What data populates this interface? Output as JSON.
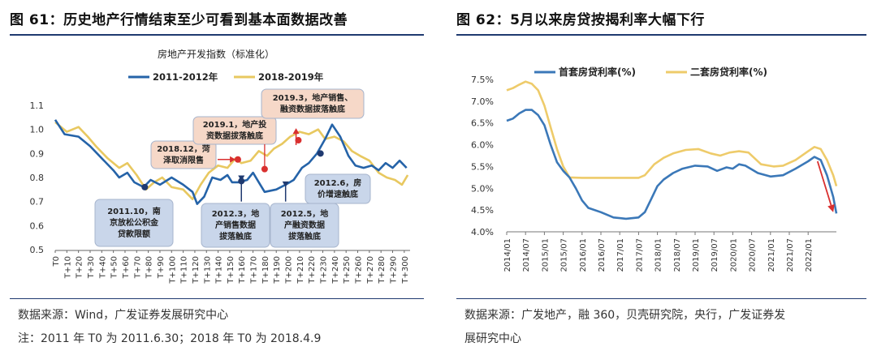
{
  "left_panel": {
    "figure_title": "图 61：历史地产行情结束至少可看到基本面数据改善",
    "source": "数据来源：Wind，广发证券发展研究中心",
    "note": "注：2011 年 T0 为 2011.6.30；2018 年 T0 为 2018.4.9",
    "colors": {
      "s2011": "#2563a8",
      "s2018": "#e8c860",
      "annotation_box": "#c9d6ea",
      "annotation_pink": "#f6d8c8",
      "marker_red": "#d9302f",
      "marker_dark": "#1f3a70"
    },
    "annotations": [
      {
        "id": "a2011_10",
        "lines": [
          "2011.10，南",
          "京放松公积金",
          "贷款限额"
        ]
      },
      {
        "id": "a2012_3",
        "lines": [
          "2012.3，地",
          "产销售数据",
          "拔落触底"
        ]
      },
      {
        "id": "a2012_5",
        "lines": [
          "2012.5，地",
          "产融资数据",
          "拔落触底"
        ]
      },
      {
        "id": "a2012_6",
        "lines": [
          "2012.6，房",
          "价增速触底"
        ]
      },
      {
        "id": "a2018_12",
        "lines": [
          "2018.12，菏",
          "泽取消限售"
        ]
      },
      {
        "id": "a2019_1",
        "lines": [
          "2019.1，地产投",
          "资数据拔落触底"
        ]
      },
      {
        "id": "a2019_3",
        "lines": [
          "2019.3，地产销售、",
          "融资数据拔落触底"
        ]
      }
    ]
  },
  "right_panel": {
    "figure_title": "图 62：5月以来房贷按揭利率大幅下行",
    "source_line1": "数据来源：广发地产，融 360，贝壳研究院，央行，广发证券发",
    "source_line2": "展研究中心",
    "colors": {
      "first": "#3b78b8",
      "second": "#eecb6a",
      "arrow": "#d9302f"
    }
  },
  "chart_data": [
    {
      "type": "line",
      "title": "房地产开发指数（标准化）",
      "xlabel": "",
      "ylabel": "",
      "ylim": [
        0.5,
        1.1
      ],
      "yticks": [
        "0.5",
        "0.6",
        "0.7",
        "0.8",
        "0.9",
        "1.0",
        "1.1"
      ],
      "xticks": [
        "T0",
        "T+10",
        "T+20",
        "T+30",
        "T+40",
        "T+50",
        "T+60",
        "T+70",
        "T+80",
        "T+90",
        "T+100",
        "T+110",
        "T+120",
        "T+130",
        "T+140",
        "T+150",
        "T+160",
        "T+170",
        "T+180",
        "T+190",
        "T+200",
        "T+210",
        "T+220",
        "T+230",
        "T+240",
        "T+250",
        "T+260",
        "T+270",
        "T+280",
        "T+290",
        "T+300"
      ],
      "xrange": [
        0,
        305
      ],
      "legend": "top",
      "series": [
        {
          "name": "2011-2012年",
          "points": [
            [
              0,
              1.04
            ],
            [
              8,
              0.98
            ],
            [
              20,
              0.97
            ],
            [
              30,
              0.93
            ],
            [
              40,
              0.88
            ],
            [
              50,
              0.83
            ],
            [
              55,
              0.8
            ],
            [
              62,
              0.82
            ],
            [
              68,
              0.78
            ],
            [
              76,
              0.76
            ],
            [
              82,
              0.79
            ],
            [
              90,
              0.77
            ],
            [
              100,
              0.8
            ],
            [
              110,
              0.77
            ],
            [
              118,
              0.74
            ],
            [
              122,
              0.69
            ],
            [
              128,
              0.72
            ],
            [
              135,
              0.8
            ],
            [
              142,
              0.79
            ],
            [
              148,
              0.81
            ],
            [
              152,
              0.78
            ],
            [
              158,
              0.78
            ],
            [
              165,
              0.79
            ],
            [
              170,
              0.82
            ],
            [
              175,
              0.78
            ],
            [
              180,
              0.74
            ],
            [
              190,
              0.75
            ],
            [
              198,
              0.77
            ],
            [
              205,
              0.79
            ],
            [
              212,
              0.84
            ],
            [
              218,
              0.86
            ],
            [
              225,
              0.9
            ],
            [
              232,
              0.96
            ],
            [
              238,
              1.02
            ],
            [
              245,
              0.97
            ],
            [
              252,
              0.89
            ],
            [
              258,
              0.85
            ],
            [
              265,
              0.84
            ],
            [
              272,
              0.85
            ],
            [
              278,
              0.83
            ],
            [
              284,
              0.86
            ],
            [
              290,
              0.84
            ],
            [
              296,
              0.87
            ],
            [
              302,
              0.84
            ]
          ]
        },
        {
          "name": "2018-2019年",
          "points": [
            [
              0,
              1.03
            ],
            [
              10,
              0.99
            ],
            [
              20,
              1.01
            ],
            [
              28,
              0.97
            ],
            [
              35,
              0.93
            ],
            [
              45,
              0.88
            ],
            [
              55,
              0.84
            ],
            [
              62,
              0.86
            ],
            [
              70,
              0.81
            ],
            [
              78,
              0.75
            ],
            [
              85,
              0.78
            ],
            [
              92,
              0.8
            ],
            [
              100,
              0.76
            ],
            [
              110,
              0.75
            ],
            [
              118,
              0.71
            ],
            [
              125,
              0.77
            ],
            [
              132,
              0.82
            ],
            [
              140,
              0.85
            ],
            [
              148,
              0.84
            ],
            [
              155,
              0.88
            ],
            [
              160,
              0.86
            ],
            [
              168,
              0.87
            ],
            [
              175,
              0.91
            ],
            [
              182,
              0.89
            ],
            [
              188,
              0.92
            ],
            [
              195,
              0.94
            ],
            [
              202,
              0.97
            ],
            [
              210,
              0.99
            ],
            [
              218,
              0.98
            ],
            [
              226,
              1.0
            ],
            [
              232,
              0.96
            ],
            [
              240,
              0.97
            ],
            [
              248,
              0.95
            ],
            [
              255,
              0.91
            ],
            [
              262,
              0.89
            ],
            [
              270,
              0.87
            ],
            [
              278,
              0.82
            ],
            [
              285,
              0.8
            ],
            [
              292,
              0.79
            ],
            [
              298,
              0.77
            ],
            [
              303,
              0.81
            ]
          ]
        }
      ]
    },
    {
      "type": "line",
      "title": "",
      "xlabel": "",
      "ylabel": "",
      "ylim": [
        4.0,
        7.5
      ],
      "yticks": [
        "4.0%",
        "4.5%",
        "5.0%",
        "5.5%",
        "6.0%",
        "6.5%",
        "7.0%",
        "7.5%"
      ],
      "xticks": [
        "2014/01",
        "2014/07",
        "2015/01",
        "2015/07",
        "2016/01",
        "2016/07",
        "2017/01",
        "2017/07",
        "2018/01",
        "2018/07",
        "2019/01",
        "2019/07",
        "2020/01",
        "2020/07",
        "2021/01",
        "2021/07",
        "2022/01"
      ],
      "xrange": [
        0,
        105
      ],
      "legend": "top",
      "series": [
        {
          "name": "首套房贷利率(%)",
          "points": [
            [
              0,
              6.55
            ],
            [
              2,
              6.6
            ],
            [
              4,
              6.72
            ],
            [
              6,
              6.8
            ],
            [
              8,
              6.8
            ],
            [
              10,
              6.68
            ],
            [
              12,
              6.45
            ],
            [
              14,
              6.0
            ],
            [
              16,
              5.6
            ],
            [
              18,
              5.4
            ],
            [
              20,
              5.25
            ],
            [
              22,
              5.0
            ],
            [
              24,
              4.72
            ],
            [
              26,
              4.55
            ],
            [
              30,
              4.45
            ],
            [
              34,
              4.33
            ],
            [
              38,
              4.3
            ],
            [
              42,
              4.33
            ],
            [
              44,
              4.45
            ],
            [
              46,
              4.75
            ],
            [
              48,
              5.05
            ],
            [
              50,
              5.2
            ],
            [
              53,
              5.35
            ],
            [
              56,
              5.45
            ],
            [
              60,
              5.52
            ],
            [
              64,
              5.5
            ],
            [
              67,
              5.4
            ],
            [
              70,
              5.48
            ],
            [
              72,
              5.45
            ],
            [
              74,
              5.55
            ],
            [
              76,
              5.52
            ],
            [
              80,
              5.35
            ],
            [
              84,
              5.27
            ],
            [
              88,
              5.3
            ],
            [
              92,
              5.45
            ],
            [
              96,
              5.62
            ],
            [
              98,
              5.72
            ],
            [
              100,
              5.65
            ],
            [
              102,
              5.3
            ],
            [
              104,
              4.8
            ],
            [
              105,
              4.42
            ]
          ]
        },
        {
          "name": "二套房贷利率(%)",
          "points": [
            [
              0,
              7.25
            ],
            [
              2,
              7.3
            ],
            [
              4,
              7.38
            ],
            [
              6,
              7.45
            ],
            [
              8,
              7.4
            ],
            [
              10,
              7.25
            ],
            [
              12,
              6.9
            ],
            [
              14,
              6.4
            ],
            [
              16,
              5.9
            ],
            [
              18,
              5.5
            ],
            [
              20,
              5.25
            ],
            [
              24,
              5.24
            ],
            [
              30,
              5.24
            ],
            [
              36,
              5.24
            ],
            [
              42,
              5.24
            ],
            [
              44,
              5.3
            ],
            [
              47,
              5.55
            ],
            [
              50,
              5.7
            ],
            [
              53,
              5.8
            ],
            [
              57,
              5.88
            ],
            [
              61,
              5.9
            ],
            [
              65,
              5.8
            ],
            [
              68,
              5.75
            ],
            [
              71,
              5.82
            ],
            [
              74,
              5.85
            ],
            [
              77,
              5.82
            ],
            [
              81,
              5.55
            ],
            [
              85,
              5.5
            ],
            [
              88,
              5.52
            ],
            [
              92,
              5.65
            ],
            [
              96,
              5.85
            ],
            [
              98,
              5.95
            ],
            [
              100,
              5.9
            ],
            [
              102,
              5.65
            ],
            [
              104,
              5.3
            ],
            [
              105,
              5.05
            ]
          ]
        }
      ]
    }
  ]
}
